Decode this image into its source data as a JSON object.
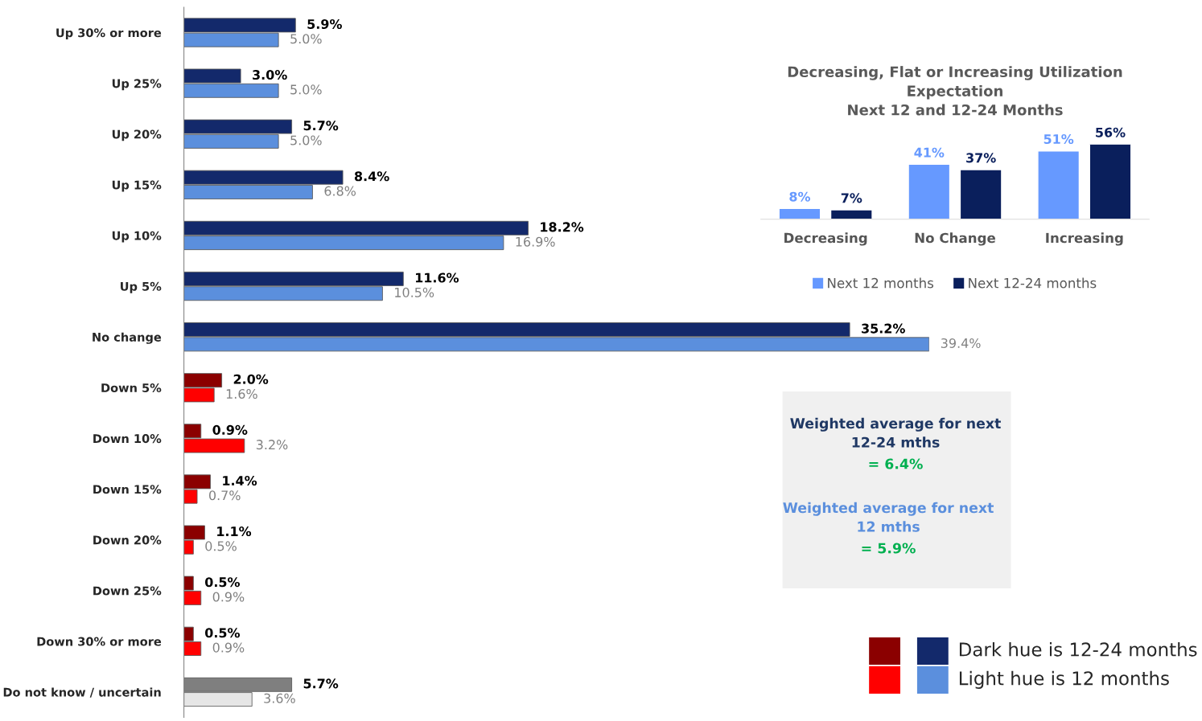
{
  "chart_data": [
    {
      "type": "bar",
      "orientation": "horizontal",
      "categories": [
        "Up 30% or more",
        "Up 25%",
        "Up 20%",
        "Up 15%",
        "Up 10%",
        "Up 5%",
        "No change",
        "Down 5%",
        "Down 10%",
        "Down 15%",
        "Down 20%",
        "Down 25%",
        "Down 30% or more",
        "Do not know / uncertain"
      ],
      "series": [
        {
          "values": [
            5.9,
            3.0,
            5.7,
            8.4,
            18.2,
            11.6,
            35.2,
            2.0,
            0.9,
            1.4,
            1.1,
            0.5,
            0.5,
            5.7
          ],
          "colors": [
            "#13296b",
            "#13296b",
            "#13296b",
            "#13296b",
            "#13296b",
            "#13296b",
            "#13296b",
            "#8b0000",
            "#8b0000",
            "#8b0000",
            "#8b0000",
            "#8b0000",
            "#8b0000",
            "#7f7f7f"
          ],
          "value_labels": [
            "5.9%",
            "3.0%",
            "5.7%",
            "8.4%",
            "18.2%",
            "11.6%",
            "35.2%",
            "2.0%",
            "0.9%",
            "1.4%",
            "1.1%",
            "0.5%",
            "0.5%",
            "5.7%"
          ]
        },
        {
          "values": [
            5.0,
            5.0,
            5.0,
            6.8,
            16.9,
            10.5,
            39.4,
            1.6,
            3.2,
            0.7,
            0.5,
            0.9,
            0.9,
            3.6
          ],
          "colors": [
            "#5b8fdd",
            "#5b8fdd",
            "#5b8fdd",
            "#5b8fdd",
            "#5b8fdd",
            "#5b8fdd",
            "#5b8fdd",
            "#ff0000",
            "#ff0000",
            "#ff0000",
            "#ff0000",
            "#ff0000",
            "#ff0000",
            "#e6e6e6"
          ],
          "value_labels": [
            "5.0%",
            "5.0%",
            "5.0%",
            "6.8%",
            "16.9%",
            "10.5%",
            "39.4%",
            "1.6%",
            "3.2%",
            "0.7%",
            "0.5%",
            "0.9%",
            "0.9%",
            "3.6%"
          ]
        }
      ],
      "annotations": [
        "Dark hue is 12-24 months",
        "Light hue is 12 months"
      ]
    },
    {
      "type": "bar",
      "title": "Decreasing, Flat or Increasing Utilization\nExpectation\nNext 12 and 12-24 Months",
      "categories": [
        "Decreasing",
        "No Change",
        "Increasing"
      ],
      "series": [
        {
          "name": "Next 12 months",
          "color": "#6699ff",
          "values": [
            8,
            41,
            51
          ],
          "value_labels": [
            "8%",
            "41%",
            "51%"
          ]
        },
        {
          "name": "Next 12-24 months",
          "color": "#0a1f5c",
          "values": [
            7,
            37,
            56
          ],
          "value_labels": [
            "7%",
            "37%",
            "56%"
          ]
        }
      ],
      "legend": "bottom"
    },
    {
      "type": "other",
      "annotations": [
        "Weighted average for next\n12-24 mths",
        "= 6.4%",
        "Weighted average for next\n12 mths",
        "= 5.9%"
      ]
    }
  ]
}
